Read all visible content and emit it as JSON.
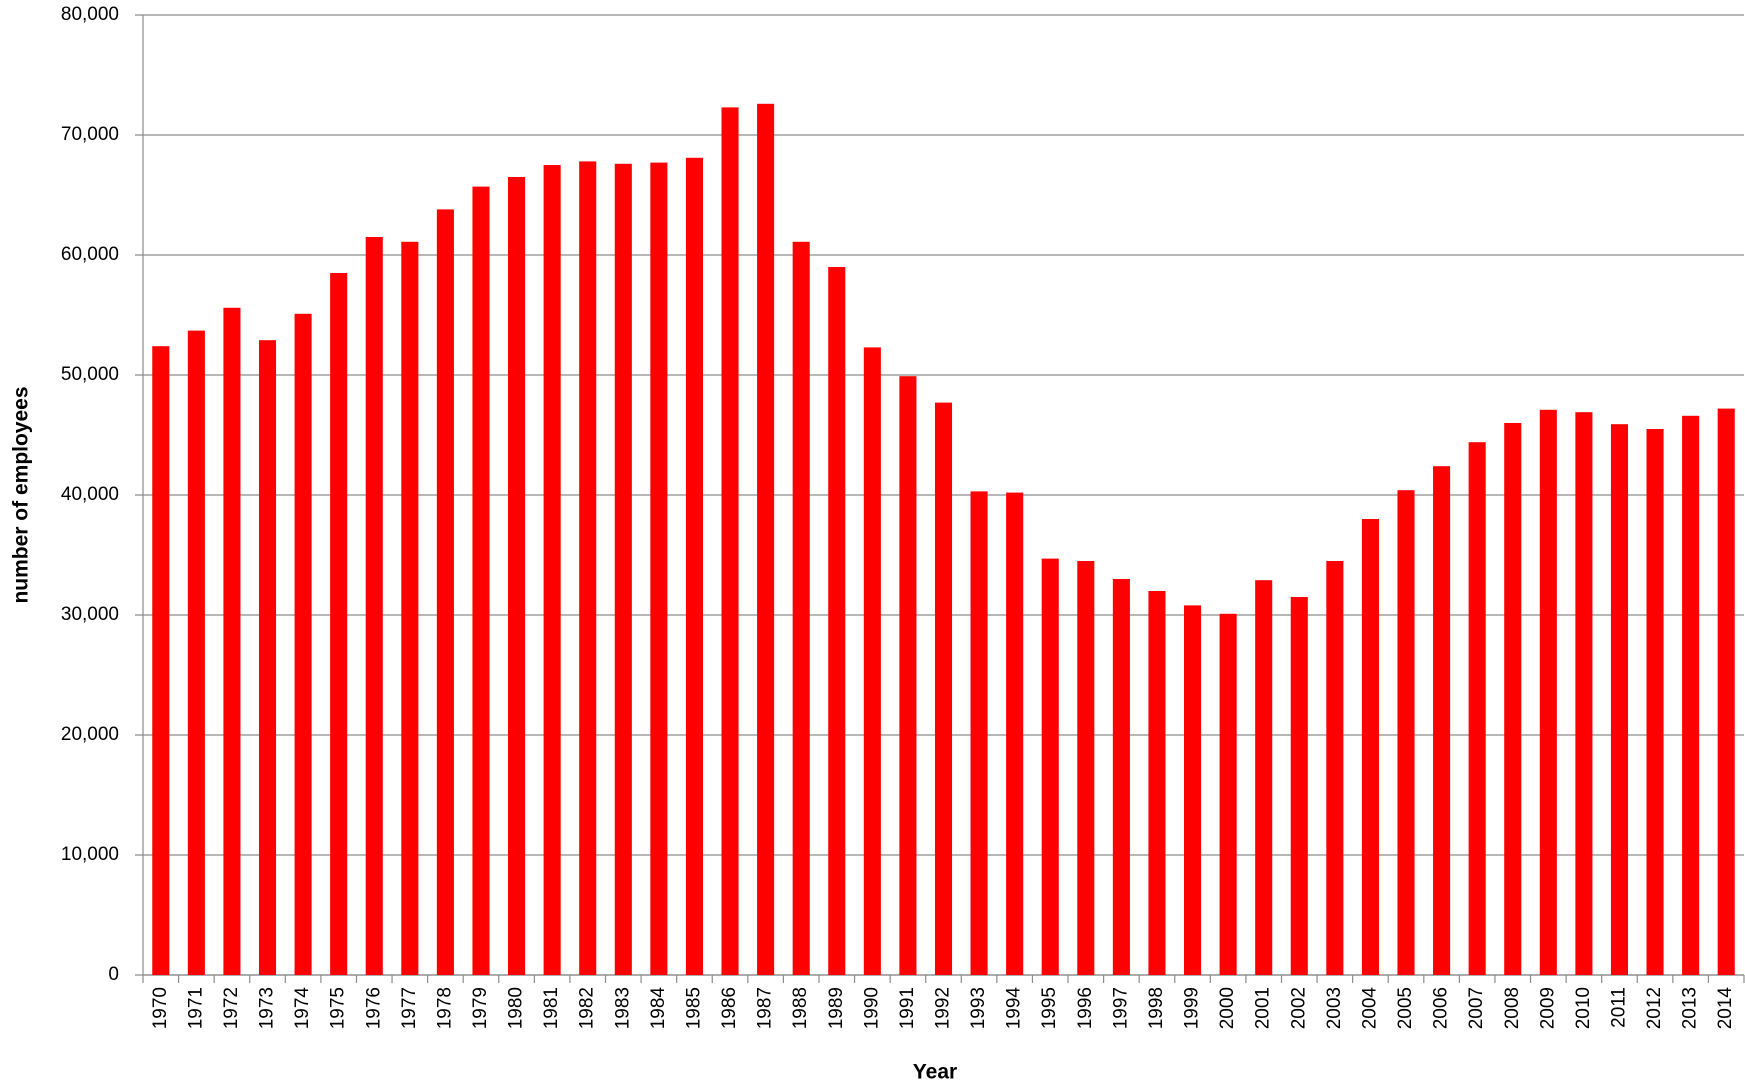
{
  "chart_data": {
    "type": "bar",
    "x_label": "Year",
    "y_label": "number of employees",
    "categories": [
      "1970",
      "1971",
      "1972",
      "1973",
      "1974",
      "1975",
      "1976",
      "1977",
      "1978",
      "1979",
      "1980",
      "1981",
      "1982",
      "1983",
      "1984",
      "1985",
      "1986",
      "1987",
      "1988",
      "1989",
      "1990",
      "1991",
      "1992",
      "1993",
      "1994",
      "1995",
      "1996",
      "1997",
      "1998",
      "1999",
      "2000",
      "2001",
      "2002",
      "2003",
      "2004",
      "2005",
      "2006",
      "2007",
      "2008",
      "2009",
      "2010",
      "2011",
      "2012",
      "2013",
      "2014"
    ],
    "values": [
      52400,
      53700,
      55600,
      52900,
      55100,
      58500,
      61500,
      61100,
      63800,
      65700,
      66500,
      67500,
      67800,
      67600,
      67700,
      68100,
      72300,
      72600,
      61100,
      59000,
      52300,
      49900,
      47700,
      40300,
      40200,
      34700,
      34500,
      33000,
      32000,
      30800,
      30100,
      32900,
      31500,
      34500,
      38000,
      40400,
      42400,
      44400,
      46000,
      47100,
      46900,
      45900,
      45500,
      46600,
      47200
    ],
    "color": "#ff0000",
    "ylim": [
      0,
      80000
    ],
    "yticks": [
      0,
      {
        "value": 10000,
        "label": "10,000"
      },
      {
        "value": 20000,
        "label": "20,000"
      },
      {
        "value": 30000,
        "label": "30,000"
      },
      {
        "value": 40000,
        "label": "40,000"
      },
      {
        "value": 50000,
        "label": "50,000"
      },
      {
        "value": 60000,
        "label": "60,000"
      },
      {
        "value": 70000,
        "label": "70,000"
      },
      {
        "value": 80000,
        "label": "80,000"
      }
    ],
    "grid": true
  }
}
